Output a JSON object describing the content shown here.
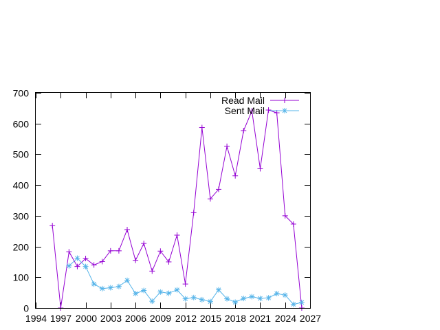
{
  "chart_data": {
    "type": "line",
    "title": "",
    "xlabel": "",
    "ylabel": "",
    "xlim": [
      1994,
      2027
    ],
    "ylim": [
      0,
      700
    ],
    "xticks": [
      1994,
      1997,
      2000,
      2003,
      2006,
      2009,
      2012,
      2015,
      2018,
      2021,
      2024,
      2027
    ],
    "yticks": [
      0,
      100,
      200,
      300,
      400,
      500,
      600,
      700
    ],
    "grid": false,
    "legend": "top-right",
    "series": [
      {
        "name": "Read Mail",
        "color": "#9400d3",
        "marker": "plus",
        "x": [
          1996,
          1997,
          1998,
          1999,
          2000,
          2001,
          2002,
          2003,
          2004,
          2005,
          2006,
          2007,
          2008,
          2009,
          2010,
          2011,
          2012,
          2013,
          2014,
          2015,
          2016,
          2017,
          2018,
          2019,
          2020,
          2021,
          2022,
          2023,
          2024,
          2025,
          2026
        ],
        "y": [
          268,
          0,
          183,
          135,
          161,
          140,
          151,
          186,
          186,
          255,
          155,
          210,
          120,
          185,
          150,
          237,
          78,
          310,
          587,
          355,
          386,
          526,
          430,
          577,
          641,
          453,
          644,
          635,
          300,
          273,
          0
        ]
      },
      {
        "name": "Sent Mail",
        "color": "#56b4e9",
        "marker": "star",
        "x": [
          1998,
          1999,
          2000,
          2001,
          2002,
          2003,
          2004,
          2005,
          2006,
          2007,
          2008,
          2009,
          2010,
          2011,
          2012,
          2013,
          2014,
          2015,
          2016,
          2017,
          2018,
          2019,
          2020,
          2021,
          2022,
          2023,
          2024,
          2025,
          2026
        ],
        "y": [
          137,
          162,
          135,
          78,
          63,
          66,
          70,
          90,
          47,
          57,
          22,
          52,
          48,
          59,
          30,
          34,
          27,
          21,
          59,
          30,
          19,
          31,
          37,
          31,
          33,
          47,
          42,
          12,
          18
        ]
      }
    ]
  }
}
